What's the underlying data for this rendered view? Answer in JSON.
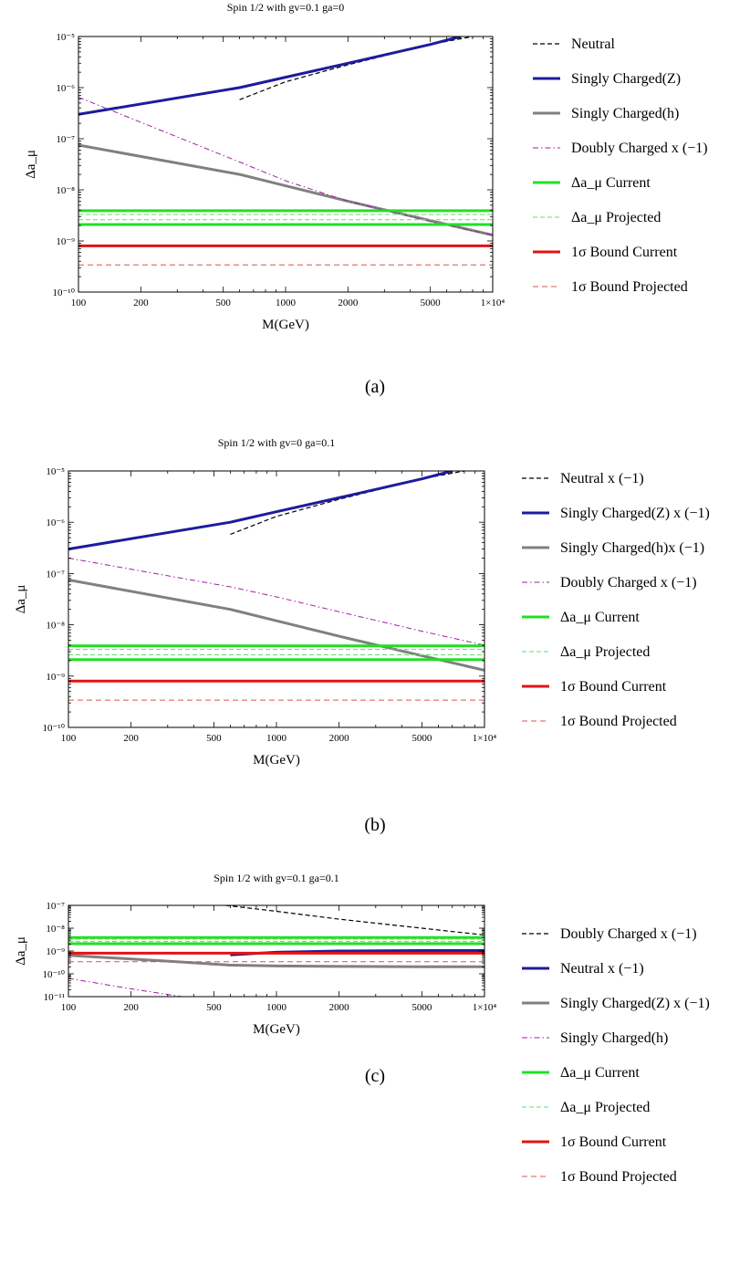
{
  "chart_data": [
    {
      "type": "line",
      "caption": "(a)",
      "title": "Spin 1/2 with gv=0.1 ga=0",
      "xlabel": "M(GeV)",
      "ylabel": "Δa_μ",
      "xscale": "log",
      "yscale": "log",
      "xlim": [
        100,
        10000
      ],
      "ylim": [
        1e-10,
        1e-05
      ],
      "xticks": [
        100,
        200,
        500,
        1000,
        2000,
        5000,
        10000
      ],
      "xtick_labels": [
        "100",
        "200",
        "500",
        "1000",
        "2000",
        "5000",
        "1×10⁴"
      ],
      "yticks": [
        1e-10,
        1e-09,
        1e-08,
        1e-07,
        1e-06,
        1e-05
      ],
      "ytick_labels": [
        "10⁻¹⁰",
        "10⁻⁹",
        "10⁻⁸",
        "10⁻⁷",
        "10⁻⁶",
        "10⁻⁵"
      ],
      "legend_position": "right",
      "series": [
        {
          "name": "Neutral",
          "style": "dashed-black",
          "color": "#000000",
          "x": [
            600,
            1000,
            2000,
            5000,
            8000
          ],
          "y": [
            5.8e-07,
            1.3e-06,
            2.8e-06,
            7e-06,
            1e-05
          ]
        },
        {
          "name": "Singly Charged(Z)",
          "style": "solid-thick",
          "color": "#1c1c9e",
          "x": [
            100,
            600,
            1000,
            2000,
            5000,
            7000
          ],
          "y": [
            3e-07,
            1e-06,
            1.6e-06,
            3e-06,
            7e-06,
            1e-05
          ]
        },
        {
          "name": "Singly Charged(h)",
          "style": "solid-thick",
          "color": "#808080",
          "x": [
            100,
            600,
            1000,
            2000,
            5000,
            10000
          ],
          "y": [
            7.5e-08,
            2e-08,
            1.2e-08,
            6e-09,
            2.5e-09,
            1.3e-09
          ]
        },
        {
          "name": "Doubly Charged x (−1)",
          "style": "dashdot",
          "color": "#a020a0",
          "x": [
            100,
            600,
            1000,
            2000,
            5000,
            10000
          ],
          "y": [
            6.5e-07,
            3.5e-08,
            1.5e-08,
            6e-09,
            2.4e-09,
            1.3e-09
          ]
        },
        {
          "name": "Δa_μ Current",
          "style": "band-solid",
          "color": "#22e022",
          "x": [
            100,
            10000
          ],
          "y": [
            2.1e-09,
            3.9e-09
          ]
        },
        {
          "name": "Δa_μ Projected",
          "style": "band-dashed",
          "color": "#66dd66",
          "x": [
            100,
            10000
          ],
          "y": [
            2.6e-09,
            3.3e-09
          ]
        },
        {
          "name": "1σ Bound Current",
          "style": "solid-thick",
          "color": "#e01414",
          "x": [
            100,
            10000
          ],
          "y": [
            8e-10,
            8e-10
          ]
        },
        {
          "name": "1σ Bound Projected",
          "style": "dashed-thin",
          "color": "#e05050",
          "x": [
            100,
            10000
          ],
          "y": [
            3.4e-10,
            3.4e-10
          ]
        }
      ]
    },
    {
      "type": "line",
      "caption": "(b)",
      "title": "Spin 1/2 with gv=0 ga=0.1",
      "xlabel": "M(GeV)",
      "ylabel": "Δa_μ",
      "xscale": "log",
      "yscale": "log",
      "xlim": [
        100,
        10000
      ],
      "ylim": [
        1e-10,
        1e-05
      ],
      "xticks": [
        100,
        200,
        500,
        1000,
        2000,
        5000,
        10000
      ],
      "xtick_labels": [
        "100",
        "200",
        "500",
        "1000",
        "2000",
        "5000",
        "1×10⁴"
      ],
      "yticks": [
        1e-10,
        1e-09,
        1e-08,
        1e-07,
        1e-06,
        1e-05
      ],
      "ytick_labels": [
        "10⁻¹⁰",
        "10⁻⁹",
        "10⁻⁸",
        "10⁻⁷",
        "10⁻⁶",
        "10⁻⁵"
      ],
      "legend_position": "right",
      "series": [
        {
          "name": "Neutral x (−1)",
          "style": "dashed-black",
          "color": "#000000",
          "x": [
            600,
            1000,
            2000,
            5000,
            8000
          ],
          "y": [
            5.8e-07,
            1.3e-06,
            2.8e-06,
            7e-06,
            1e-05
          ]
        },
        {
          "name": "Singly Charged(Z) x (−1)",
          "style": "solid-thick",
          "color": "#1c1c9e",
          "x": [
            100,
            600,
            1000,
            2000,
            5000,
            7000
          ],
          "y": [
            3e-07,
            1e-06,
            1.6e-06,
            3e-06,
            7e-06,
            1e-05
          ]
        },
        {
          "name": "Singly Charged(h)x (−1)",
          "style": "solid-thick",
          "color": "#808080",
          "x": [
            100,
            600,
            1000,
            2000,
            5000,
            10000
          ],
          "y": [
            7.5e-08,
            2e-08,
            1.2e-08,
            6e-09,
            2.5e-09,
            1.3e-09
          ]
        },
        {
          "name": "Doubly Charged x (−1)",
          "style": "dashdot",
          "color": "#a020a0",
          "x": [
            100,
            600,
            1000,
            2000,
            5000,
            10000
          ],
          "y": [
            2e-07,
            5.5e-08,
            3.5e-08,
            1.8e-08,
            7.5e-09,
            4e-09
          ]
        },
        {
          "name": "Δa_μ Current",
          "style": "band-solid",
          "color": "#22e022",
          "x": [
            100,
            10000
          ],
          "y": [
            2.1e-09,
            3.9e-09
          ]
        },
        {
          "name": "Δa_μ Projected",
          "style": "band-dashed",
          "color": "#66dd66",
          "x": [
            100,
            10000
          ],
          "y": [
            2.6e-09,
            3.3e-09
          ]
        },
        {
          "name": "1σ Bound Current",
          "style": "solid-thick",
          "color": "#e01414",
          "x": [
            100,
            10000
          ],
          "y": [
            8e-10,
            8e-10
          ]
        },
        {
          "name": "1σ Bound Projected",
          "style": "dashed-thin",
          "color": "#e05050",
          "x": [
            100,
            10000
          ],
          "y": [
            3.4e-10,
            3.4e-10
          ]
        }
      ]
    },
    {
      "type": "line",
      "caption": "(c)",
      "title": "Spin 1/2 with gv=0.1 ga=0.1",
      "xlabel": "M(GeV)",
      "ylabel": "Δa_μ",
      "xscale": "log",
      "yscale": "log",
      "xlim": [
        100,
        10000
      ],
      "ylim": [
        1e-11,
        1e-07
      ],
      "xticks": [
        100,
        200,
        500,
        1000,
        2000,
        5000,
        10000
      ],
      "xtick_labels": [
        "100",
        "200",
        "500",
        "1000",
        "2000",
        "5000",
        "1×10⁴"
      ],
      "yticks": [
        1e-11,
        1e-10,
        1e-09,
        1e-08,
        1e-07
      ],
      "ytick_labels": [
        "10⁻¹¹",
        "10⁻¹⁰",
        "10⁻⁹",
        "10⁻⁸",
        "10⁻⁷"
      ],
      "legend_position": "right",
      "series": [
        {
          "name": "Doubly Charged x (−1)",
          "style": "dashed-black",
          "color": "#000000",
          "x": [
            570,
            1000,
            2000,
            5000,
            10000
          ],
          "y": [
            1e-07,
            5.5e-08,
            2.5e-08,
            1e-08,
            5e-09
          ]
        },
        {
          "name": "Neutral x (−1)",
          "style": "solid-thick",
          "color": "#1c1c9e",
          "x": [
            600,
            1000,
            2000,
            5000,
            10000
          ],
          "y": [
            6.8e-10,
            8.8e-10,
            1e-09,
            1.05e-09,
            1.05e-09
          ]
        },
        {
          "name": "Singly Charged(Z) x (−1)",
          "style": "solid-thick",
          "color": "#808080",
          "x": [
            100,
            300,
            600,
            1000,
            2000,
            5000,
            10000
          ],
          "y": [
            6.5e-10,
            3.6e-10,
            2.4e-10,
            2.2e-10,
            2.1e-10,
            2.05e-10,
            2.05e-10
          ]
        },
        {
          "name": "Singly Charged(h)",
          "style": "dashdot",
          "color": "#a020a0",
          "x": [
            100,
            200,
            350
          ],
          "y": [
            6.3e-11,
            2.2e-11,
            1e-11
          ]
        },
        {
          "name": "Δa_μ Current",
          "style": "band-solid",
          "color": "#22e022",
          "x": [
            100,
            10000
          ],
          "y": [
            2.1e-09,
            3.9e-09
          ]
        },
        {
          "name": "Δa_μ Projected",
          "style": "band-dashed",
          "color": "#66dd66",
          "x": [
            100,
            10000
          ],
          "y": [
            2.6e-09,
            3.3e-09
          ]
        },
        {
          "name": "1σ Bound Current",
          "style": "solid-thick",
          "color": "#e01414",
          "x": [
            100,
            10000
          ],
          "y": [
            8e-10,
            8e-10
          ]
        },
        {
          "name": "1σ Bound Projected",
          "style": "dashed-thin",
          "color": "#e05050",
          "x": [
            100,
            10000
          ],
          "y": [
            3.4e-10,
            3.4e-10
          ]
        }
      ]
    }
  ]
}
